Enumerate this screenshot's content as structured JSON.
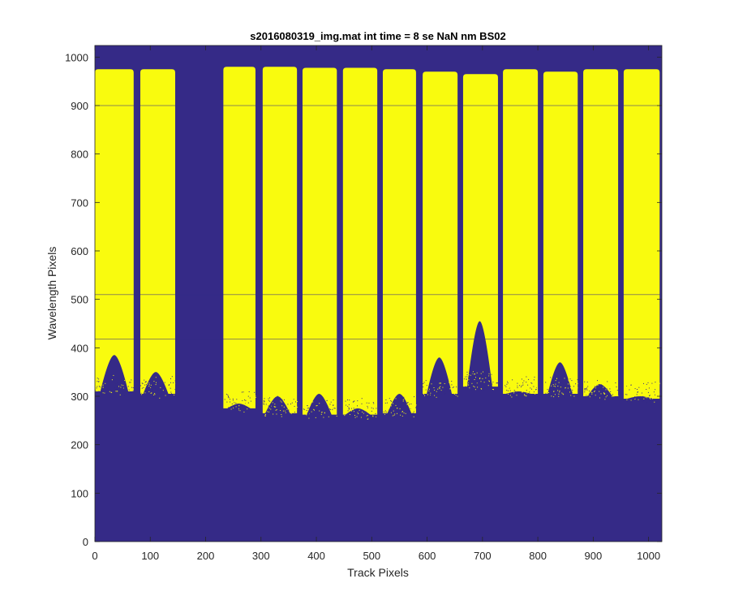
{
  "chart_data": {
    "type": "heatmap",
    "title": "s2016080319_img.mat int time = 8 se  NaN nm BS02",
    "xlabel": "Track Pixels",
    "ylabel": "Wavelength Pixels",
    "xlim": [
      0,
      1024
    ],
    "ylim": [
      0,
      1024
    ],
    "xticks": [
      0,
      100,
      200,
      300,
      400,
      500,
      600,
      700,
      800,
      900,
      1000
    ],
    "yticks": [
      0,
      100,
      200,
      300,
      400,
      500,
      600,
      700,
      800,
      900,
      1000
    ],
    "colors": {
      "background": "#352a87",
      "saturated": "#f9fb0e"
    },
    "bands": [
      {
        "x0": 0,
        "x1": 70,
        "top": 975,
        "bottom": 310,
        "peak_center": 35,
        "peak_bottom": 385
      },
      {
        "x0": 82,
        "x1": 145,
        "top": 975,
        "bottom": 305,
        "peak_center": 110,
        "peak_bottom": 350
      },
      {
        "x0": 232,
        "x1": 290,
        "top": 980,
        "bottom": 275,
        "peak_center": 260,
        "peak_bottom": 285
      },
      {
        "x0": 303,
        "x1": 365,
        "top": 980,
        "bottom": 265,
        "peak_center": 330,
        "peak_bottom": 300
      },
      {
        "x0": 375,
        "x1": 437,
        "top": 978,
        "bottom": 262,
        "peak_center": 405,
        "peak_bottom": 305
      },
      {
        "x0": 448,
        "x1": 510,
        "top": 978,
        "bottom": 262,
        "peak_center": 475,
        "peak_bottom": 275
      },
      {
        "x0": 520,
        "x1": 580,
        "top": 975,
        "bottom": 265,
        "peak_center": 550,
        "peak_bottom": 305
      },
      {
        "x0": 592,
        "x1": 655,
        "top": 970,
        "bottom": 305,
        "peak_center": 622,
        "peak_bottom": 380
      },
      {
        "x0": 665,
        "x1": 728,
        "top": 965,
        "bottom": 320,
        "peak_center": 695,
        "peak_bottom": 455
      },
      {
        "x0": 737,
        "x1": 800,
        "top": 975,
        "bottom": 305,
        "peak_center": 765,
        "peak_bottom": 310
      },
      {
        "x0": 810,
        "x1": 872,
        "top": 970,
        "bottom": 305,
        "peak_center": 840,
        "peak_bottom": 370
      },
      {
        "x0": 882,
        "x1": 945,
        "top": 975,
        "bottom": 300,
        "peak_center": 912,
        "peak_bottom": 325
      },
      {
        "x0": 955,
        "x1": 1020,
        "top": 975,
        "bottom": 295,
        "peak_center": 985,
        "peak_bottom": 300
      }
    ],
    "horizontal_lines": [
      900,
      510,
      418
    ]
  }
}
